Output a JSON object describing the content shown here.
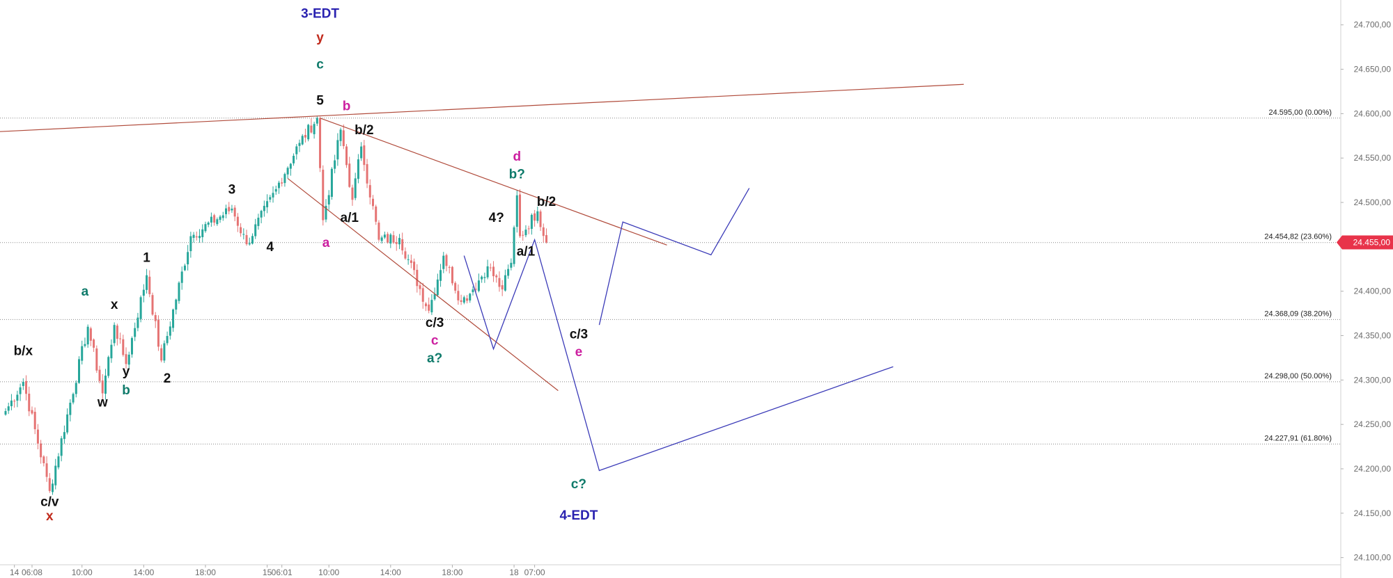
{
  "chart_data": {
    "type": "candlestick",
    "title": "",
    "xlabel": "",
    "ylabel": "",
    "ylim": [
      24077,
      24728
    ],
    "colors": {
      "up": "#26a69a",
      "down": "#e57373",
      "trendline": "#b04a3a",
      "projection": "#3b3bb8",
      "wave_black": "#111111",
      "wave_teal": "#0e7a6a",
      "wave_red": "#c0291b",
      "wave_magenta": "#cc1fa0",
      "wave_navy": "#2a22b0",
      "price_tag": "#e8334a",
      "grid": "#888888"
    },
    "price_axis": {
      "ticks": [
        {
          "value": 24700,
          "label": "24.700,00"
        },
        {
          "value": 24650,
          "label": "24.650,00"
        },
        {
          "value": 24600,
          "label": "24.600,00"
        },
        {
          "value": 24550,
          "label": "24.550,00"
        },
        {
          "value": 24500,
          "label": "24.500,00"
        },
        {
          "value": 24400,
          "label": "24.400,00"
        },
        {
          "value": 24350,
          "label": "24.350,00"
        },
        {
          "value": 24300,
          "label": "24.300,00"
        },
        {
          "value": 24250,
          "label": "24.250,00"
        },
        {
          "value": 24200,
          "label": "24.200,00"
        },
        {
          "value": 24150,
          "label": "24.150,00"
        },
        {
          "value": 24100,
          "label": "24.100,00"
        }
      ],
      "last_price": {
        "value": 24455,
        "label": "24.455,00"
      }
    },
    "time_axis": {
      "ticks": [
        {
          "bar": 3,
          "label": "14"
        },
        {
          "bar": 9,
          "label": "06:08"
        },
        {
          "bar": 26,
          "label": "10:00"
        },
        {
          "bar": 47,
          "label": "14:00"
        },
        {
          "bar": 68,
          "label": "18:00"
        },
        {
          "bar": 89,
          "label": "15"
        },
        {
          "bar": 94,
          "label": "06:01"
        },
        {
          "bar": 110,
          "label": "10:00"
        },
        {
          "bar": 131,
          "label": "14:00"
        },
        {
          "bar": 152,
          "label": "18:00"
        },
        {
          "bar": 173,
          "label": "18"
        },
        {
          "bar": 180,
          "label": "07:00"
        }
      ]
    },
    "fib_levels": [
      {
        "value": 24595.0,
        "label": "24.595,00 (0.00%)"
      },
      {
        "value": 24454.82,
        "label": "24.454,82 (23.60%)"
      },
      {
        "value": 24368.09,
        "label": "24.368,09 (38.20%)"
      },
      {
        "value": 24298.0,
        "label": "24.298,00 (50.00%)"
      },
      {
        "value": 24227.91,
        "label": "24.227,91 (61.80%)"
      }
    ],
    "anchors": [
      {
        "bar": 0,
        "price": 24265
      },
      {
        "bar": 6,
        "price": 24298
      },
      {
        "bar": 15,
        "price": 24175
      },
      {
        "bar": 28,
        "price": 24360
      },
      {
        "bar": 33,
        "price": 24285
      },
      {
        "bar": 37,
        "price": 24362
      },
      {
        "bar": 41,
        "price": 24318
      },
      {
        "bar": 48,
        "price": 24418
      },
      {
        "bar": 53,
        "price": 24322
      },
      {
        "bar": 63,
        "price": 24462
      },
      {
        "bar": 77,
        "price": 24493
      },
      {
        "bar": 82,
        "price": 24453
      },
      {
        "bar": 92,
        "price": 24515
      },
      {
        "bar": 100,
        "price": 24567
      },
      {
        "bar": 106,
        "price": 24595
      },
      {
        "bar": 108,
        "price": 24480
      },
      {
        "bar": 114,
        "price": 24582
      },
      {
        "bar": 118,
        "price": 24503
      },
      {
        "bar": 121,
        "price": 24563
      },
      {
        "bar": 127,
        "price": 24458
      },
      {
        "bar": 134,
        "price": 24460
      },
      {
        "bar": 144,
        "price": 24378
      },
      {
        "bar": 149,
        "price": 24440
      },
      {
        "bar": 155,
        "price": 24388
      },
      {
        "bar": 159,
        "price": 24402
      },
      {
        "bar": 164,
        "price": 24428
      },
      {
        "bar": 169,
        "price": 24402
      },
      {
        "bar": 172,
        "price": 24432
      },
      {
        "bar": 174,
        "price": 24508
      },
      {
        "bar": 175,
        "price": 24462
      },
      {
        "bar": 181,
        "price": 24490
      },
      {
        "bar": 184,
        "price": 24455
      }
    ],
    "trendlines": [
      {
        "points": [
          [
            -87,
            24566
          ],
          [
            326,
            24633
          ]
        ]
      },
      {
        "points": [
          [
            107,
            24595
          ],
          [
            225,
            24452
          ]
        ]
      },
      {
        "points": [
          [
            96,
            24527
          ],
          [
            188,
            24288
          ]
        ]
      }
    ],
    "projections": [
      {
        "points": [
          [
            156,
            24440
          ],
          [
            166,
            24335
          ],
          [
            180,
            24458
          ],
          [
            202,
            24198
          ],
          [
            302,
            24315
          ]
        ]
      },
      {
        "points": [
          [
            202,
            24362
          ],
          [
            210,
            24478
          ],
          [
            240,
            24441
          ],
          [
            253,
            24516
          ]
        ]
      }
    ],
    "wave_labels": [
      {
        "text": "3-EDT",
        "bar": 107,
        "price": 24708,
        "color": "#2a22b0"
      },
      {
        "text": "y",
        "bar": 107,
        "price": 24681,
        "color": "#c0291b"
      },
      {
        "text": "c",
        "bar": 107,
        "price": 24651,
        "color": "#0e7a6a"
      },
      {
        "text": "5",
        "bar": 107,
        "price": 24610,
        "color": "#111111"
      },
      {
        "text": "b",
        "bar": 116,
        "price": 24604,
        "color": "#cc1fa0"
      },
      {
        "text": "b/2",
        "bar": 122,
        "price": 24577,
        "color": "#111111"
      },
      {
        "text": "3",
        "bar": 77,
        "price": 24510,
        "color": "#111111"
      },
      {
        "text": "4",
        "bar": 90,
        "price": 24445,
        "color": "#111111"
      },
      {
        "text": "a",
        "bar": 109,
        "price": 24450,
        "color": "#cc1fa0"
      },
      {
        "text": "a/1",
        "bar": 117,
        "price": 24478,
        "color": "#111111"
      },
      {
        "text": "1",
        "bar": 48,
        "price": 24433,
        "color": "#111111"
      },
      {
        "text": "a",
        "bar": 27,
        "price": 24395,
        "color": "#0e7a6a"
      },
      {
        "text": "x",
        "bar": 37,
        "price": 24380,
        "color": "#111111"
      },
      {
        "text": "y",
        "bar": 41,
        "price": 24305,
        "color": "#111111"
      },
      {
        "text": "b",
        "bar": 41,
        "price": 24284,
        "color": "#0e7a6a"
      },
      {
        "text": "w",
        "bar": 33,
        "price": 24270,
        "color": "#111111"
      },
      {
        "text": "2",
        "bar": 55,
        "price": 24297,
        "color": "#111111"
      },
      {
        "text": "b/x",
        "bar": 6,
        "price": 24328,
        "color": "#111111"
      },
      {
        "text": "c/v",
        "bar": 15,
        "price": 24158,
        "color": "#111111"
      },
      {
        "text": "x",
        "bar": 15,
        "price": 24142,
        "color": "#c0291b"
      },
      {
        "text": "c/3",
        "bar": 146,
        "price": 24360,
        "color": "#111111"
      },
      {
        "text": "c",
        "bar": 146,
        "price": 24340,
        "color": "#cc1fa0"
      },
      {
        "text": "a?",
        "bar": 146,
        "price": 24320,
        "color": "#0e7a6a"
      },
      {
        "text": "4?",
        "bar": 167,
        "price": 24478,
        "color": "#111111"
      },
      {
        "text": "d",
        "bar": 174,
        "price": 24547,
        "color": "#cc1fa0"
      },
      {
        "text": "b?",
        "bar": 174,
        "price": 24527,
        "color": "#0e7a6a"
      },
      {
        "text": "b/2",
        "bar": 184,
        "price": 24496,
        "color": "#111111"
      },
      {
        "text": "a/1",
        "bar": 177,
        "price": 24440,
        "color": "#111111"
      },
      {
        "text": "c/3",
        "bar": 195,
        "price": 24347,
        "color": "#111111"
      },
      {
        "text": "e",
        "bar": 195,
        "price": 24327,
        "color": "#cc1fa0"
      },
      {
        "text": "c?",
        "bar": 195,
        "price": 24178,
        "color": "#0e7a6a"
      },
      {
        "text": "4-EDT",
        "bar": 195,
        "price": 24143,
        "color": "#2a22b0"
      }
    ]
  }
}
